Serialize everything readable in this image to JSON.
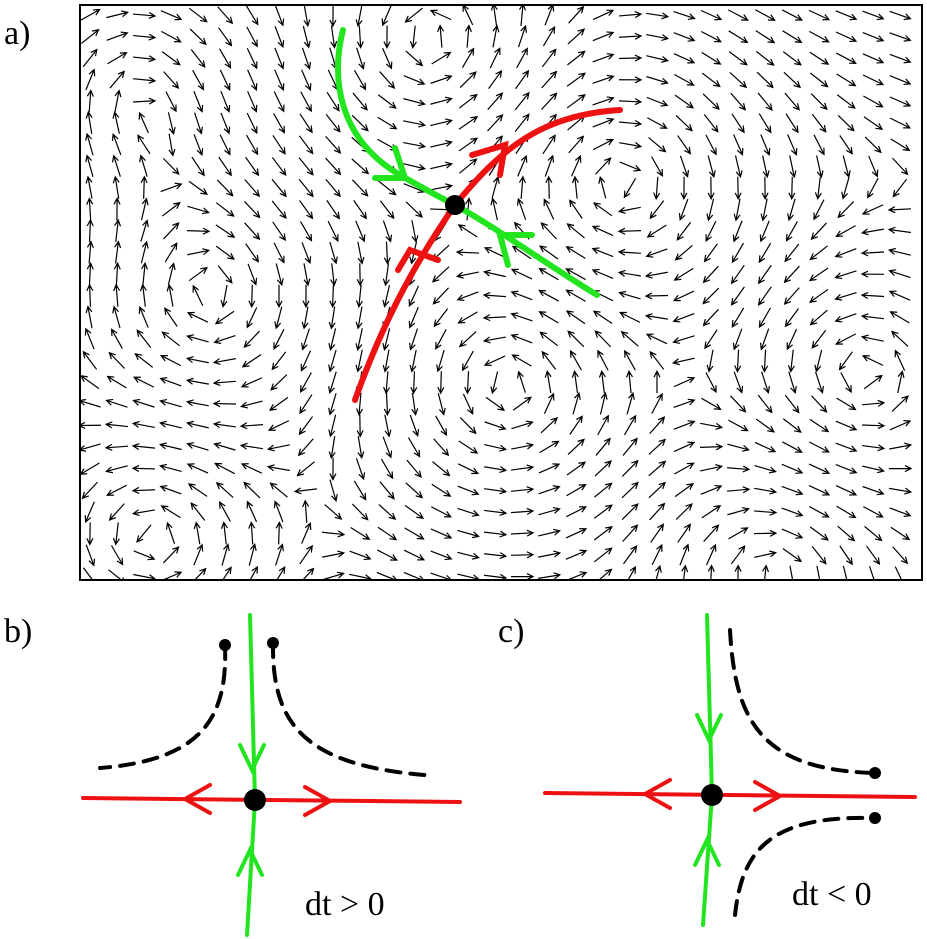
{
  "panels": [
    {
      "label": "a)"
    },
    {
      "label": "b)",
      "caption": "dt > 0"
    },
    {
      "label": "c)",
      "caption": "dt < 0"
    }
  ]
}
